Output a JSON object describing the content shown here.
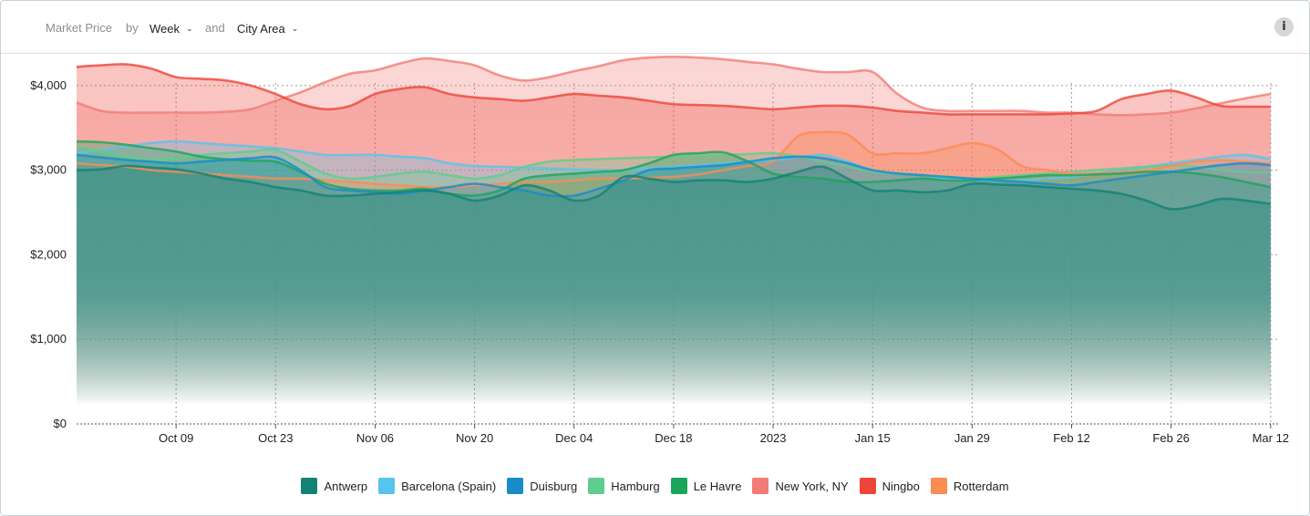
{
  "header": {
    "metric_label": "Market Price",
    "by_label": "by",
    "period_value": "Week",
    "and_label": "and",
    "group_value": "City Area",
    "info_icon": "i"
  },
  "chart_data": {
    "type": "area",
    "title": "",
    "xlabel": "",
    "ylabel": "",
    "ylim": [
      0,
      4300
    ],
    "y_ticks": [
      0,
      1000,
      2000,
      3000,
      4000
    ],
    "y_tick_labels": [
      "$0",
      "$1,000",
      "$2,000",
      "$3,000",
      "$4,000"
    ],
    "x_tick_labels": [
      "Oct 09",
      "Oct 23",
      "Nov 06",
      "Nov 20",
      "Dec 04",
      "Dec 18",
      "2023",
      "Jan 15",
      "Jan 29",
      "Feb 12",
      "Feb 26",
      "Mar 12"
    ],
    "x_tick_positions": [
      7,
      9,
      11,
      13,
      15,
      17,
      19,
      21,
      23,
      25,
      27,
      29
    ],
    "x_range": [
      5,
      29.15
    ],
    "grid": true,
    "legend_position": "bottom",
    "x": [
      5,
      5.5,
      6,
      6.5,
      7,
      7.5,
      8,
      8.5,
      9,
      9.5,
      10,
      10.5,
      11,
      11.5,
      12,
      12.5,
      13,
      13.5,
      14,
      14.5,
      15,
      15.5,
      16,
      16.5,
      17,
      17.5,
      18,
      18.5,
      19,
      19.5,
      20,
      20.5,
      21,
      21.5,
      22,
      22.5,
      23,
      23.5,
      24,
      24.5,
      25,
      25.5,
      26,
      26.5,
      27,
      27.5,
      28,
      28.5,
      29
    ],
    "series": [
      {
        "name": "Antwerp",
        "color": "#128276",
        "values": [
          3000,
          3010,
          3050,
          3030,
          3010,
          2960,
          2900,
          2860,
          2800,
          2760,
          2700,
          2700,
          2720,
          2740,
          2760,
          2720,
          2640,
          2700,
          2820,
          2760,
          2640,
          2700,
          2920,
          2900,
          2860,
          2880,
          2880,
          2860,
          2900,
          2980,
          3040,
          2900,
          2760,
          2760,
          2740,
          2760,
          2840,
          2830,
          2820,
          2800,
          2780,
          2760,
          2720,
          2640,
          2540,
          2580,
          2660,
          2640,
          2600
        ]
      },
      {
        "name": "Barcelona (Spain)",
        "color": "#57c4ee",
        "values": [
          3200,
          3240,
          3280,
          3320,
          3340,
          3320,
          3300,
          3280,
          3260,
          3220,
          3180,
          3180,
          3180,
          3160,
          3140,
          3080,
          3050,
          3040,
          3030,
          3020,
          3010,
          3000,
          3000,
          3020,
          3040,
          3060,
          3080,
          3100,
          3120,
          3150,
          3180,
          3100,
          3000,
          2960,
          2940,
          2900,
          2880,
          2880,
          2880,
          2900,
          2920,
          2960,
          3000,
          3040,
          3080,
          3120,
          3160,
          3180,
          3130
        ]
      },
      {
        "name": "Duisburg",
        "color": "#178cc9",
        "values": [
          3180,
          3150,
          3120,
          3100,
          3080,
          3100,
          3120,
          3140,
          3150,
          3000,
          2800,
          2760,
          2740,
          2720,
          2760,
          2800,
          2840,
          2800,
          2760,
          2700,
          2700,
          2780,
          2880,
          3000,
          3020,
          3040,
          3060,
          3100,
          3140,
          3160,
          3140,
          3080,
          3000,
          2960,
          2940,
          2920,
          2900,
          2880,
          2860,
          2840,
          2820,
          2860,
          2900,
          2940,
          2980,
          3020,
          3060,
          3080,
          3060
        ]
      },
      {
        "name": "Hamburg",
        "color": "#5fcd8d",
        "values": [
          3280,
          3220,
          3160,
          3120,
          3140,
          3180,
          3200,
          3220,
          3240,
          3100,
          2960,
          2900,
          2920,
          2960,
          2980,
          2940,
          2900,
          2940,
          3040,
          3100,
          3120,
          3130,
          3140,
          3150,
          3160,
          3170,
          3180,
          3190,
          3200,
          3160,
          3100,
          3040,
          2980,
          2960,
          2940,
          2920,
          2900,
          2920,
          2940,
          2960,
          2980,
          3000,
          3020,
          3040,
          3060,
          3040,
          3000,
          2980,
          2970
        ]
      },
      {
        "name": "Le Havre",
        "color": "#1ba55a",
        "values": [
          3340,
          3330,
          3300,
          3260,
          3220,
          3160,
          3130,
          3110,
          3100,
          2980,
          2840,
          2780,
          2760,
          2760,
          2780,
          2720,
          2700,
          2760,
          2900,
          2940,
          2960,
          2980,
          3000,
          3080,
          3180,
          3200,
          3210,
          3100,
          2960,
          2920,
          2900,
          2860,
          2860,
          2880,
          2900,
          2880,
          2880,
          2900,
          2920,
          2940,
          2940,
          2950,
          2960,
          2980,
          2980,
          2960,
          2920,
          2860,
          2800
        ]
      },
      {
        "name": "New York, NY",
        "color": "#f17c76",
        "values": [
          3800,
          3700,
          3680,
          3680,
          3680,
          3680,
          3690,
          3720,
          3820,
          3920,
          4040,
          4140,
          4180,
          4260,
          4320,
          4290,
          4240,
          4120,
          4060,
          4100,
          4170,
          4230,
          4300,
          4330,
          4340,
          4330,
          4310,
          4280,
          4250,
          4200,
          4160,
          4160,
          4160,
          3900,
          3740,
          3700,
          3700,
          3700,
          3700,
          3680,
          3680,
          3660,
          3650,
          3660,
          3680,
          3730,
          3790,
          3850,
          3900
        ]
      },
      {
        "name": "Ningbo",
        "color": "#ee453a",
        "values": [
          4220,
          4240,
          4250,
          4200,
          4100,
          4080,
          4060,
          4000,
          3900,
          3780,
          3720,
          3760,
          3900,
          3960,
          3980,
          3900,
          3860,
          3840,
          3820,
          3860,
          3900,
          3880,
          3860,
          3820,
          3780,
          3770,
          3760,
          3740,
          3720,
          3740,
          3760,
          3760,
          3740,
          3700,
          3680,
          3660,
          3660,
          3660,
          3660,
          3660,
          3670,
          3700,
          3840,
          3900,
          3940,
          3860,
          3760,
          3750,
          3750
        ]
      },
      {
        "name": "Rotterdam",
        "color": "#fb8c52",
        "values": [
          3080,
          3060,
          3040,
          3000,
          2980,
          2960,
          2940,
          2920,
          2900,
          2900,
          2880,
          2860,
          2840,
          2820,
          2800,
          2800,
          2820,
          2840,
          2860,
          2860,
          2880,
          2900,
          2900,
          2910,
          2920,
          2950,
          3000,
          3050,
          3100,
          3400,
          3450,
          3420,
          3200,
          3200,
          3200,
          3260,
          3320,
          3250,
          3050,
          3000,
          2960,
          2960,
          2980,
          3000,
          3050,
          3100,
          3120,
          3100,
          3080
        ]
      }
    ]
  }
}
